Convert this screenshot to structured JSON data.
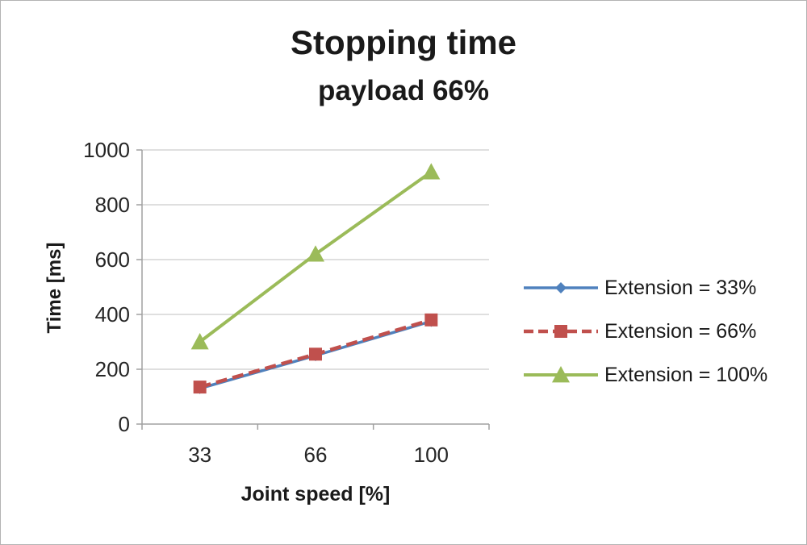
{
  "chart_data": {
    "type": "line",
    "title": "Stopping time",
    "subtitle": "payload 66%",
    "xlabel": "Joint speed [%]",
    "ylabel": "Time [ms]",
    "categories": [
      "33",
      "66",
      "100"
    ],
    "ylim": [
      0,
      1000
    ],
    "y_ticks": [
      0,
      200,
      400,
      600,
      800,
      1000
    ],
    "grid": true,
    "legend_position": "right",
    "colors": {
      "grid": "#bfbfbf",
      "axis": "#a0a0a0",
      "text": "#262626"
    },
    "series": [
      {
        "name": "Extension = 33%",
        "values": [
          130,
          250,
          375
        ],
        "color": "#4F81BD",
        "marker": "diamond",
        "dash": "solid"
      },
      {
        "name": "Extension = 66%",
        "values": [
          135,
          255,
          380
        ],
        "color": "#C0504D",
        "marker": "square",
        "dash": "dashed"
      },
      {
        "name": "Extension = 100%",
        "values": [
          300,
          620,
          920
        ],
        "color": "#9BBB59",
        "marker": "triangle",
        "dash": "solid"
      }
    ]
  }
}
